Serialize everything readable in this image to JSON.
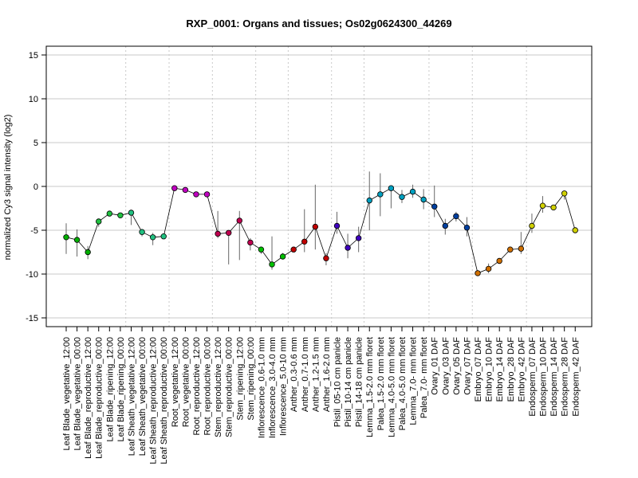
{
  "chart_data": {
    "type": "line",
    "title": "RXP_0001: Organs and tissues; Os02g0624300_44269",
    "xlabel": "",
    "ylabel": "normalized Cy3 signal intensity (log2)",
    "ylim": [
      -16,
      16
    ],
    "yticks": [
      -15,
      -10,
      -5,
      0,
      5,
      10,
      15
    ],
    "grid": true,
    "legend": "none",
    "categories": [
      "Leaf Blade_vegetative_12:00",
      "Leaf Blade_vegetative_00:00",
      "Leaf Blade_reproductive_12:00",
      "Leaf Blade_reproductive_00:00",
      "Leaf Blade_ripening_12:00",
      "Leaf Blade_ripening_00:00",
      "Leaf Sheath_vegetative_12:00",
      "Leaf Sheath_vegetative_00:00",
      "Leaf Sheath_reproductive_12:00",
      "Leaf Sheath_reproductive_00:00",
      "Root_vegetative_12:00",
      "Root_vegetative_00:00",
      "Root_reproductive_12:00",
      "Root_reproductive_00:00",
      "Stem_reproductive_12:00",
      "Stem_reproductive_00:00",
      "Stem_ripening_12:00",
      "Stem_ripening_00:00",
      "Inflorescence_0.6-1.0 mm",
      "Inflorescence_3.0-4.0 mm",
      "Inflorescence_5.0-10 mm",
      "Anther_0.3-0.6 mm",
      "Anther_0.7-1.0 mm",
      "Anther_1.2-1.5 mm",
      "Anther_1.6-2.0 mm",
      "Pistil_05-10 cm panicle",
      "Pistil_10-14 cm panicle",
      "Pistil_14-18 cm panicle",
      "Lemma_1.5-2.0 mm floret",
      "Palea_1.5-2.0 mm floret",
      "Lemma_4.0-5.0 mm floret",
      "Palea_4.0-5.0 mm floret",
      "Lemma_7.0- mm floret",
      "Palea_7.0- mm floret",
      "Ovary_01 DAF",
      "Ovary_03 DAF",
      "Ovary_05 DAF",
      "Ovary_07 DAF",
      "Embryo_07 DAF",
      "Embryo_10 DAF",
      "Embryo_14 DAF",
      "Embryo_28 DAF",
      "Embryo_42 DAF",
      "Endosperm_07 DAF",
      "Endosperm_10 DAF",
      "Endosperm_14 DAF",
      "Endosperm_28 DAF",
      "Endosperm_42 DAF"
    ],
    "values": [
      -5.8,
      -6.1,
      -7.5,
      -4.0,
      -3.1,
      -3.3,
      -3.0,
      -5.2,
      -5.8,
      -5.7,
      -0.2,
      -0.4,
      -0.9,
      -0.9,
      -5.4,
      -5.3,
      -3.9,
      -6.4,
      -7.2,
      -8.9,
      -8.0,
      -7.2,
      -6.3,
      -4.6,
      -8.2,
      -4.5,
      -7.0,
      -5.9,
      -1.6,
      -0.9,
      -0.2,
      -1.2,
      -0.6,
      -1.5,
      -2.3,
      -4.5,
      -3.4,
      -4.7,
      -9.9,
      -9.4,
      -8.5,
      -7.2,
      -7.1,
      -4.5,
      -2.2,
      -2.4,
      -0.8,
      -5.0
    ],
    "error_low": [
      -7.7,
      -8.0,
      -8.3,
      -4.6,
      -3.1,
      -3.3,
      -4.4,
      -5.7,
      -6.7,
      -5.7,
      -0.2,
      -0.4,
      -0.9,
      -0.9,
      -5.9,
      -8.9,
      -8.4,
      -7.3,
      -7.7,
      -9.5,
      -8.2,
      -7.2,
      -7.5,
      -7.2,
      -9.0,
      -5.4,
      -8.2,
      -7.5,
      -5.0,
      -3.4,
      -2.5,
      -1.9,
      -1.3,
      -2.6,
      -3.5,
      -5.5,
      -4.0,
      -5.7,
      -9.9,
      -9.9,
      -8.8,
      -7.2,
      -7.7,
      -5.3,
      -3.0,
      -2.6,
      -1.5,
      -5.3
    ],
    "error_high": [
      -4.2,
      -4.9,
      -6.8,
      -3.8,
      -3.1,
      -3.3,
      -2.8,
      -4.9,
      -5.3,
      -5.7,
      -0.2,
      -0.4,
      -0.9,
      -0.9,
      -2.8,
      -5.3,
      -2.8,
      -5.9,
      -7.0,
      -5.7,
      -7.6,
      -7.2,
      -2.6,
      0.2,
      -7.6,
      -2.9,
      -5.4,
      -4.6,
      1.7,
      1.5,
      0.0,
      -0.4,
      0.2,
      -0.3,
      0.1,
      -3.7,
      -2.9,
      -3.5,
      -9.9,
      -8.8,
      -8.2,
      -7.2,
      -5.2,
      -3.1,
      -1.1,
      -2.2,
      -0.5,
      -4.7
    ],
    "point_colors": [
      "#00B000",
      "#00B000",
      "#00B000",
      "#20C040",
      "#20C040",
      "#20C040",
      "#20C080",
      "#20C080",
      "#20C080",
      "#20C080",
      "#C000C0",
      "#C000C0",
      "#C000C0",
      "#C000C0",
      "#C00050",
      "#C00050",
      "#C00050",
      "#C00050",
      "#00C000",
      "#00C000",
      "#00C000",
      "#C00000",
      "#C00000",
      "#C00000",
      "#C00000",
      "#4000C0",
      "#4000C0",
      "#4000C0",
      "#00A0C0",
      "#00A0C0",
      "#00A0C0",
      "#00A0C0",
      "#00A0C0",
      "#00A0C0",
      "#0040A0",
      "#0040A0",
      "#0040A0",
      "#0040A0",
      "#D07000",
      "#D07000",
      "#D07000",
      "#D07000",
      "#D07000",
      "#D0D000",
      "#D0D000",
      "#D0D000",
      "#D0D000",
      "#D0D000"
    ],
    "vertical_separators_after": [
      5,
      9,
      13,
      17,
      20,
      24,
      27,
      33,
      37,
      42
    ]
  }
}
